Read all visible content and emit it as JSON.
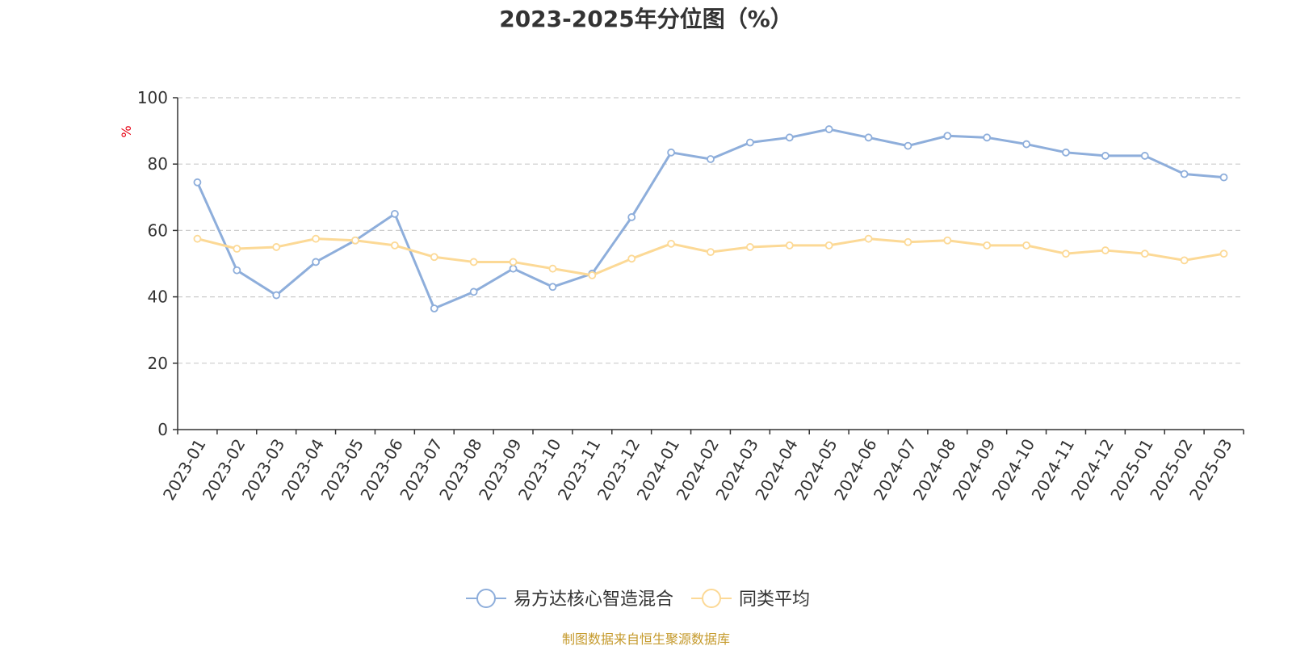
{
  "chart_data": {
    "type": "line",
    "title": "2023-2025年分位图（%）",
    "ylabel": "%",
    "ylim": [
      0,
      100
    ],
    "yticks": [
      0,
      20,
      40,
      60,
      80,
      100
    ],
    "grid": true,
    "legend_position": "bottom",
    "categories": [
      "2023-01",
      "2023-02",
      "2023-03",
      "2023-04",
      "2023-05",
      "2023-06",
      "2023-07",
      "2023-08",
      "2023-09",
      "2023-10",
      "2023-11",
      "2023-12",
      "2024-01",
      "2024-02",
      "2024-03",
      "2024-04",
      "2024-05",
      "2024-06",
      "2024-07",
      "2024-08",
      "2024-09",
      "2024-10",
      "2024-11",
      "2024-12",
      "2025-01",
      "2025-02",
      "2025-03"
    ],
    "series": [
      {
        "name": "易方达核心智造混合",
        "color": "#8eaedb",
        "values": [
          74.5,
          48,
          40.5,
          50.5,
          57,
          65,
          36.5,
          41.5,
          48.5,
          43,
          47,
          64,
          83.5,
          81.5,
          86.5,
          88,
          90.5,
          88,
          85.5,
          88.5,
          88,
          86,
          83.5,
          82.5,
          82.5,
          77,
          76
        ]
      },
      {
        "name": "同类平均",
        "color": "#fcd996",
        "values": [
          57.5,
          54.5,
          55,
          57.5,
          57,
          55.5,
          52,
          50.5,
          50.5,
          48.5,
          46.5,
          51.5,
          56,
          53.5,
          55,
          55.5,
          55.5,
          57.5,
          56.5,
          57,
          55.5,
          55.5,
          53,
          54,
          53,
          51,
          53
        ]
      }
    ]
  },
  "colors": {
    "ylabel": "#e60012",
    "source": "#c59a2c",
    "axis": "#333333",
    "grid": "#cccccc"
  },
  "source": "制图数据来自恒生聚源数据库"
}
